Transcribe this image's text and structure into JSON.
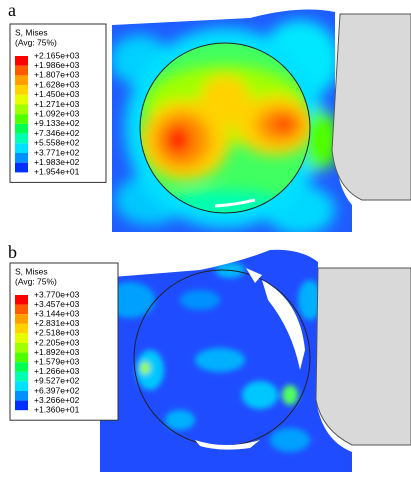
{
  "panels": [
    {
      "label": "a",
      "legend": {
        "title": "S, Mises",
        "subtitle": "(Avg: 75%)",
        "values": [
          "+2.165e+03",
          "+1.986e+03",
          "+1.807e+03",
          "+1.628e+03",
          "+1.450e+03",
          "+1.271e+03",
          "+1.092e+03",
          "+9.133e+02",
          "+7.346e+02",
          "+5.558e+02",
          "+3.771e+02",
          "+1.983e+02",
          "+1.954e+01"
        ]
      }
    },
    {
      "label": "b",
      "legend": {
        "title": "S, Mises",
        "subtitle": "(Avg: 75%)",
        "values": [
          "+3.770e+03",
          "+3.457e+03",
          "+3.144e+03",
          "+2.831e+03",
          "+2.518e+03",
          "+2.205e+03",
          "+1.892e+03",
          "+1.579e+03",
          "+1.266e+03",
          "+9.527e+02",
          "+6.397e+02",
          "+3.266e+02",
          "+1.360e+01"
        ]
      }
    }
  ],
  "colors": [
    "#ff0000",
    "#ff5a00",
    "#ffa000",
    "#ffd200",
    "#e6ff00",
    "#a0ff00",
    "#50ff00",
    "#00ff50",
    "#00ffb0",
    "#00e0ff",
    "#0090ff",
    "#0030ff"
  ]
}
